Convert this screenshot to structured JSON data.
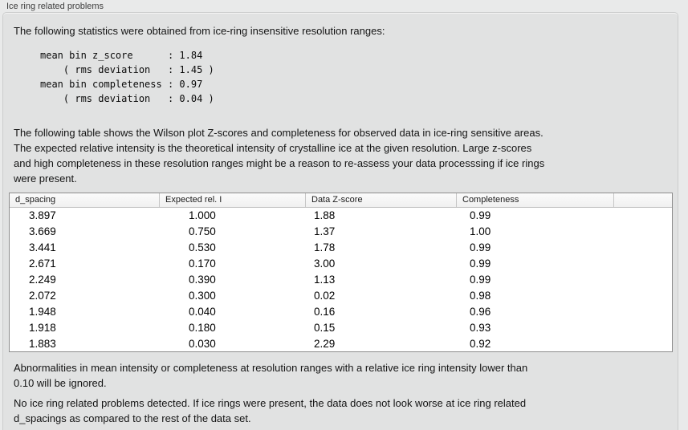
{
  "group": {
    "title": "Ice ring related problems",
    "intro": "The following statistics were obtained from ice-ring insensitive resolution ranges:",
    "stats_block": "mean bin z_score      : 1.84\n    ( rms deviation   : 1.45 )\nmean bin completeness : 0.97\n    ( rms deviation   : 0.04 )",
    "stats": {
      "mean_bin_z_score": "1.84",
      "z_score_rms_deviation": "1.45",
      "mean_bin_completeness": "0.97",
      "completeness_rms_deviation": "0.04"
    },
    "table_intro": "The following table shows the Wilson plot Z-scores and completeness for observed data in ice-ring sensitive areas.\nThe expected relative intensity is the theoretical intensity of crystalline ice at the given resolution. Large z-scores\nand high completeness in these resolution ranges might be a reason to re-assess your data processsing if ice rings\nwere present.",
    "ignore_note": "Abnormalities in mean intensity or completeness at resolution ranges with a relative ice ring intensity lower than\n0.10 will be ignored.",
    "conclusion": "No ice ring related problems detected. If ice rings were present, the data does not look worse at ice ring related\nd_spacings as compared to the rest of the data set."
  },
  "table": {
    "columns": [
      "d_spacing",
      "Expected rel. I",
      "Data Z-score",
      "Completeness",
      ""
    ],
    "rows": [
      [
        "3.897",
        "1.000",
        "1.88",
        "0.99"
      ],
      [
        "3.669",
        "0.750",
        "1.37",
        "1.00"
      ],
      [
        "3.441",
        "0.530",
        "1.78",
        "0.99"
      ],
      [
        "2.671",
        "0.170",
        "3.00",
        "0.99"
      ],
      [
        "2.249",
        "0.390",
        "1.13",
        "0.99"
      ],
      [
        "2.072",
        "0.300",
        "0.02",
        "0.98"
      ],
      [
        "1.948",
        "0.040",
        "0.16",
        "0.96"
      ],
      [
        "1.918",
        "0.180",
        "0.15",
        "0.93"
      ],
      [
        "1.883",
        "0.030",
        "2.29",
        "0.92"
      ]
    ]
  }
}
